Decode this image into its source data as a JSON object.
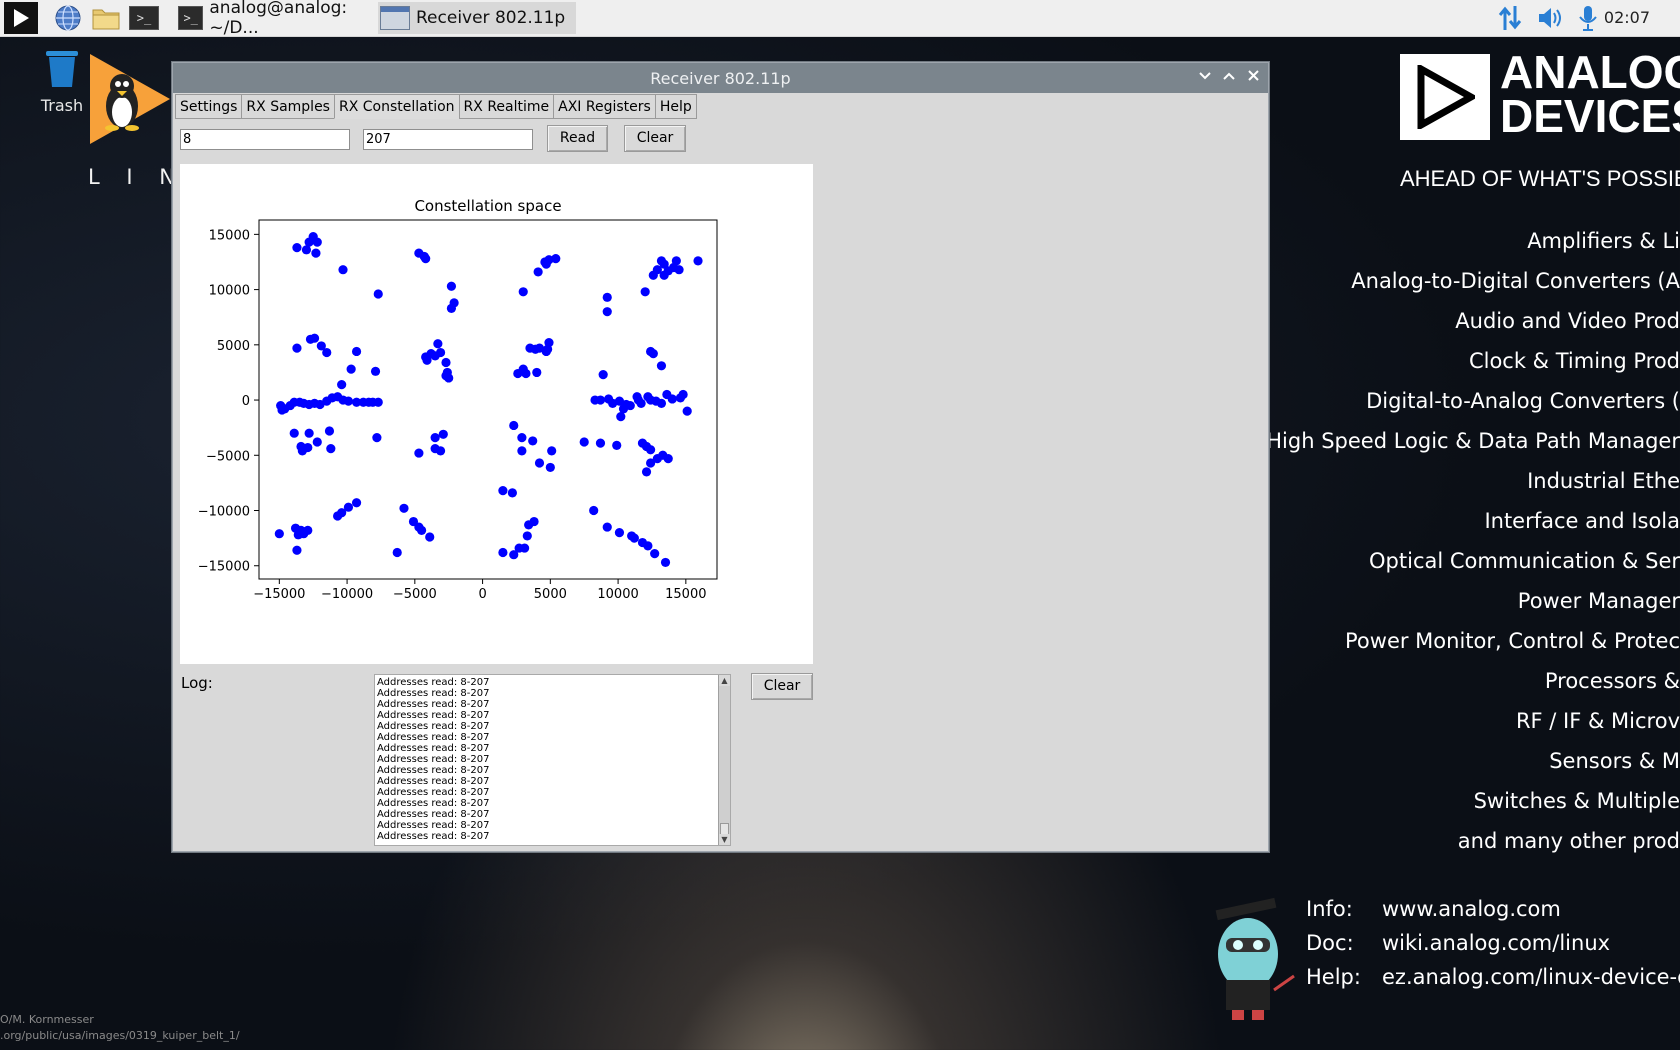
{
  "taskbar": {
    "tasks": [
      {
        "label": "analog@analog: ~/D..."
      },
      {
        "label": "Receiver 802.11p"
      }
    ],
    "clock": "02:07"
  },
  "desktop": {
    "trash_label": "Trash",
    "linux_label": "L I N U X",
    "brand": {
      "line1": "ANALOG",
      "line2": "DEVICES",
      "tagline": "AHEAD OF WHAT'S POSSIBLE"
    },
    "products": [
      "Amplifiers & Li",
      "Analog-to-Digital Converters (A",
      "Audio and Video Prod",
      "Clock & Timing Prod",
      "Digital-to-Analog Converters (",
      "High Speed Logic & Data Path Manager",
      "Industrial Ethe",
      "Interface and Isola",
      "Optical Communication & Ser",
      "Power Manager",
      "Power Monitor, Control & Protec",
      "Processors &",
      "RF / IF & Microv",
      "Sensors & M",
      "Switches & Multiple",
      "and many other prod"
    ],
    "info": [
      {
        "key": "Info:",
        "value": "www.analog.com"
      },
      {
        "key": "Doc:",
        "value": "wiki.analog.com/linux"
      },
      {
        "key": "Help:",
        "value": "ez.analog.com/linux-device-dr"
      }
    ],
    "credit_line1": "O/M. Kornmesser",
    "credit_line2": ".org/public/usa/images/0319_kuiper_belt_1/"
  },
  "window": {
    "title": "Receiver 802.11p",
    "tabs": [
      "Settings",
      "RX Samples",
      "RX Constellation",
      "RX Realtime",
      "AXI Registers",
      "Help"
    ],
    "active_tab": "RX Constellation",
    "start_value": "8",
    "end_value": "207",
    "read_label": "Read",
    "clear_label": "Clear",
    "log_label": "Log:",
    "log_clear_label": "Clear",
    "log_lines": [
      "Addresses read: 8-207",
      "Addresses read: 8-207",
      "Addresses read: 8-207",
      "Addresses read: 8-207",
      "Addresses read: 8-207",
      "Addresses read: 8-207",
      "Addresses read: 8-207",
      "Addresses read: 8-207",
      "Addresses read: 8-207",
      "Addresses read: 8-207",
      "Addresses read: 8-207",
      "Addresses read: 8-207",
      "Addresses read: 8-207",
      "Addresses read: 8-207",
      "Addresses read: 8-207"
    ]
  },
  "chart_data": {
    "type": "scatter",
    "title": "Constellation space",
    "xlabel": "",
    "ylabel": "",
    "xlim": [
      -16500,
      17300
    ],
    "ylim": [
      -16200,
      16300
    ],
    "xticks": [
      -15000,
      -10000,
      -5000,
      0,
      5000,
      10000,
      15000
    ],
    "yticks": [
      -15000,
      -10000,
      -5000,
      0,
      5000,
      10000,
      15000
    ],
    "xtick_labels": [
      "−15000",
      "−10000",
      "−5000",
      "0",
      "5000",
      "10000",
      "15000"
    ],
    "ytick_labels": [
      "−15000",
      "−10000",
      "−5000",
      "0",
      "5000",
      "10000",
      "15000"
    ],
    "grid": false,
    "color": "#0000ff",
    "points": [
      [
        -12500,
        14800
      ],
      [
        -13700,
        13800
      ],
      [
        -12800,
        14300
      ],
      [
        -12200,
        14300
      ],
      [
        -13000,
        13600
      ],
      [
        -12300,
        13300
      ],
      [
        -10300,
        11800
      ],
      [
        -7700,
        9600
      ],
      [
        -4700,
        13300
      ],
      [
        -4300,
        13000
      ],
      [
        -4200,
        12800
      ],
      [
        -2300,
        10300
      ],
      [
        -2100,
        8800
      ],
      [
        -2300,
        8300
      ],
      [
        3000,
        9800
      ],
      [
        4100,
        11600
      ],
      [
        4600,
        12500
      ],
      [
        4900,
        12700
      ],
      [
        5400,
        12800
      ],
      [
        4700,
        12300
      ],
      [
        9200,
        9300
      ],
      [
        9200,
        8000
      ],
      [
        12000,
        9800
      ],
      [
        12600,
        11300
      ],
      [
        12900,
        11800
      ],
      [
        13200,
        12600
      ],
      [
        13400,
        12300
      ],
      [
        13700,
        11700
      ],
      [
        14100,
        12000
      ],
      [
        14300,
        12600
      ],
      [
        14500,
        11800
      ],
      [
        13400,
        11300
      ],
      [
        15900,
        12600
      ],
      [
        -12700,
        5500
      ],
      [
        -12400,
        5600
      ],
      [
        -11900,
        4900
      ],
      [
        -13700,
        4700
      ],
      [
        -9300,
        4400
      ],
      [
        -11500,
        4300
      ],
      [
        -9700,
        2800
      ],
      [
        -7900,
        2600
      ],
      [
        -10400,
        1400
      ],
      [
        -3300,
        5100
      ],
      [
        -3800,
        4200
      ],
      [
        -3500,
        4000
      ],
      [
        -3100,
        4300
      ],
      [
        -4200,
        3900
      ],
      [
        -4100,
        3600
      ],
      [
        -2700,
        3400
      ],
      [
        -2600,
        2500
      ],
      [
        -2700,
        2200
      ],
      [
        -2500,
        2000
      ],
      [
        3500,
        4700
      ],
      [
        3900,
        4600
      ],
      [
        4200,
        4700
      ],
      [
        4700,
        4400
      ],
      [
        4800,
        4600
      ],
      [
        4900,
        5200
      ],
      [
        3000,
        2800
      ],
      [
        2600,
        2400
      ],
      [
        3200,
        2400
      ],
      [
        4000,
        2500
      ],
      [
        12400,
        4400
      ],
      [
        12600,
        4200
      ],
      [
        13200,
        3100
      ],
      [
        8900,
        2300
      ],
      [
        -14900,
        -500
      ],
      [
        -14800,
        -900
      ],
      [
        -14600,
        -800
      ],
      [
        -14200,
        -500
      ],
      [
        -13900,
        -200
      ],
      [
        -13500,
        -200
      ],
      [
        -13200,
        -300
      ],
      [
        -12800,
        -400
      ],
      [
        -12400,
        -300
      ],
      [
        -12000,
        -400
      ],
      [
        -11500,
        -100
      ],
      [
        -11100,
        200
      ],
      [
        -10700,
        300
      ],
      [
        -10300,
        0
      ],
      [
        -9900,
        -100
      ],
      [
        -9300,
        -200
      ],
      [
        -8800,
        -200
      ],
      [
        -8400,
        -200
      ],
      [
        -8100,
        -200
      ],
      [
        -7700,
        -200
      ],
      [
        8300,
        0
      ],
      [
        8700,
        0
      ],
      [
        9300,
        100
      ],
      [
        9600,
        -300
      ],
      [
        10100,
        -100
      ],
      [
        10400,
        -800
      ],
      [
        10600,
        -400
      ],
      [
        10900,
        -500
      ],
      [
        11400,
        300
      ],
      [
        11500,
        0
      ],
      [
        11700,
        -300
      ],
      [
        12200,
        300
      ],
      [
        12400,
        0
      ],
      [
        12800,
        -100
      ],
      [
        13200,
        -300
      ],
      [
        13600,
        500
      ],
      [
        14000,
        100
      ],
      [
        14600,
        200
      ],
      [
        14800,
        500
      ],
      [
        15100,
        -1000
      ],
      [
        10200,
        -1500
      ],
      [
        -13900,
        -3000
      ],
      [
        -12800,
        -3000
      ],
      [
        -11300,
        -2800
      ],
      [
        -13400,
        -4200
      ],
      [
        -13300,
        -4600
      ],
      [
        -12900,
        -4300
      ],
      [
        -12200,
        -3800
      ],
      [
        -11200,
        -4400
      ],
      [
        -7800,
        -3400
      ],
      [
        -3500,
        -3400
      ],
      [
        -2900,
        -3100
      ],
      [
        -4700,
        -4800
      ],
      [
        -3500,
        -4400
      ],
      [
        -3100,
        -4600
      ],
      [
        2300,
        -2300
      ],
      [
        2900,
        -3400
      ],
      [
        3700,
        -3700
      ],
      [
        2900,
        -4600
      ],
      [
        5100,
        -4600
      ],
      [
        4200,
        -5700
      ],
      [
        5000,
        -6100
      ],
      [
        7500,
        -3800
      ],
      [
        8700,
        -3900
      ],
      [
        9900,
        -4100
      ],
      [
        11800,
        -3900
      ],
      [
        12100,
        -4200
      ],
      [
        12400,
        -4500
      ],
      [
        12400,
        -5700
      ],
      [
        12900,
        -5300
      ],
      [
        13300,
        -5000
      ],
      [
        13700,
        -5300
      ],
      [
        12100,
        -6500
      ],
      [
        -15000,
        -12100
      ],
      [
        -13800,
        -11600
      ],
      [
        -13600,
        -12200
      ],
      [
        -13400,
        -11800
      ],
      [
        -13200,
        -12100
      ],
      [
        -12900,
        -11800
      ],
      [
        -13700,
        -13600
      ],
      [
        -10700,
        -10500
      ],
      [
        -10400,
        -10200
      ],
      [
        -9900,
        -9700
      ],
      [
        -9300,
        -9300
      ],
      [
        -5800,
        -9800
      ],
      [
        -5100,
        -11000
      ],
      [
        -4700,
        -11500
      ],
      [
        -4500,
        -11800
      ],
      [
        -3900,
        -12400
      ],
      [
        -6300,
        -13800
      ],
      [
        1500,
        -8200
      ],
      [
        2200,
        -8400
      ],
      [
        3800,
        -11000
      ],
      [
        3400,
        -11300
      ],
      [
        3300,
        -12300
      ],
      [
        3100,
        -13400
      ],
      [
        2700,
        -13400
      ],
      [
        1500,
        -13800
      ],
      [
        2300,
        -14000
      ],
      [
        8200,
        -10000
      ],
      [
        9200,
        -11500
      ],
      [
        10100,
        -12000
      ],
      [
        11000,
        -12300
      ],
      [
        11200,
        -12500
      ],
      [
        11800,
        -12900
      ],
      [
        12200,
        -13200
      ],
      [
        12700,
        -13900
      ],
      [
        13500,
        -14700
      ]
    ]
  }
}
